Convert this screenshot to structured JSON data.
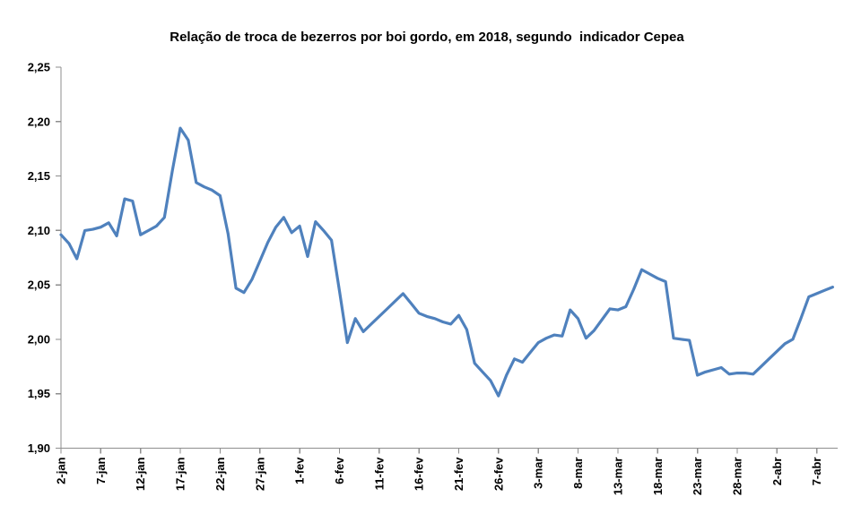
{
  "chart_data": {
    "type": "line",
    "title": "Relação de troca de bezerros por boi gordo, em 2018, segundo  indicador Cepea",
    "xlabel": "",
    "ylabel": "",
    "grid": false,
    "legend": "none",
    "ylim": [
      1.9,
      2.25
    ],
    "background_color": "#FFFFFF",
    "axis_color": "#8E8E8E",
    "text_color": "#000000",
    "line_color": "#4F81BD",
    "y_tick_labels": [
      "2,25",
      "2,20",
      "2,15",
      "2,10",
      "2,05",
      "2,00",
      "1,95",
      "1,90"
    ],
    "y_tick_values": [
      2.25,
      2.2,
      2.15,
      2.1,
      2.05,
      2.0,
      1.95,
      1.9
    ],
    "x_tick_labels": [
      "2-jan",
      "7-jan",
      "12-jan",
      "17-jan",
      "22-jan",
      "27-jan",
      "1-fev",
      "6-fev",
      "11-fev",
      "16-fev",
      "21-fev",
      "26-fev",
      "3-mar",
      "8-mar",
      "13-mar",
      "18-mar",
      "23-mar",
      "28-mar",
      "2-abr",
      "7-abr"
    ],
    "x_tick_positions": [
      0,
      5,
      10,
      15,
      20,
      25,
      30,
      35,
      40,
      45,
      50,
      55,
      60,
      65,
      70,
      75,
      80,
      85,
      90,
      95
    ],
    "x": [
      "2-jan",
      "3-jan",
      "4-jan",
      "5-jan",
      "6-jan",
      "7-jan",
      "8-jan",
      "9-jan",
      "10-jan",
      "11-jan",
      "12-jan",
      "13-jan",
      "14-jan",
      "15-jan",
      "16-jan",
      "17-jan",
      "18-jan",
      "19-jan",
      "20-jan",
      "21-jan",
      "22-jan",
      "23-jan",
      "24-jan",
      "25-jan",
      "26-jan",
      "27-jan",
      "28-jan",
      "29-jan",
      "30-jan",
      "31-jan",
      "1-fev",
      "2-fev",
      "3-fev",
      "4-fev",
      "5-fev",
      "6-fev",
      "7-fev",
      "8-fev",
      "9-fev",
      "10-fev",
      "11-fev",
      "12-fev",
      "13-fev",
      "14-fev",
      "15-fev",
      "16-fev",
      "17-fev",
      "18-fev",
      "19-fev",
      "20-fev",
      "21-fev",
      "22-fev",
      "23-fev",
      "24-fev",
      "25-fev",
      "26-fev",
      "27-fev",
      "28-fev",
      "1-mar",
      "2-mar",
      "3-mar",
      "4-mar",
      "5-mar",
      "6-mar",
      "7-mar",
      "8-mar",
      "9-mar",
      "10-mar",
      "11-mar",
      "12-mar",
      "13-mar",
      "14-mar",
      "15-mar",
      "16-mar",
      "17-mar",
      "18-mar",
      "19-mar",
      "20-mar",
      "21-mar",
      "22-mar",
      "23-mar",
      "24-mar",
      "25-mar",
      "26-mar",
      "27-mar",
      "28-mar",
      "29-mar",
      "30-mar",
      "31-mar",
      "1-abr",
      "2-abr",
      "3-abr",
      "4-abr",
      "5-abr",
      "6-abr",
      "7-abr",
      "8-abr",
      "9-abr"
    ],
    "series": [
      {
        "color": "#4F81BD",
        "values": [
          2.096,
          2.088,
          2.074,
          2.1,
          2.101,
          2.103,
          2.107,
          2.095,
          2.129,
          2.127,
          2.096,
          2.1,
          2.104,
          2.112,
          2.155,
          2.194,
          2.183,
          2.144,
          2.14,
          2.137,
          2.132,
          2.097,
          2.047,
          2.043,
          2.055,
          2.072,
          2.089,
          2.103,
          2.112,
          2.098,
          2.104,
          2.076,
          2.108,
          2.1,
          2.091,
          2.045,
          1.997,
          2.019,
          2.007,
          2.014,
          2.021,
          2.028,
          2.035,
          2.042,
          2.033,
          2.024,
          2.021,
          2.019,
          2.016,
          2.014,
          2.022,
          2.009,
          1.978,
          1.97,
          1.962,
          1.948,
          1.967,
          1.982,
          1.979,
          1.988,
          1.997,
          2.001,
          2.004,
          2.003,
          2.027,
          2.019,
          2.001,
          2.008,
          2.018,
          2.028,
          2.027,
          2.03,
          2.046,
          2.064,
          2.06,
          2.056,
          2.053,
          2.001,
          2.0,
          1.999,
          1.967,
          1.97,
          1.972,
          1.974,
          1.968,
          1.969,
          1.969,
          1.968,
          1.975,
          1.982,
          1.989,
          1.996,
          2.0,
          2.019,
          2.039,
          2.042,
          2.045,
          2.048
        ]
      }
    ]
  }
}
